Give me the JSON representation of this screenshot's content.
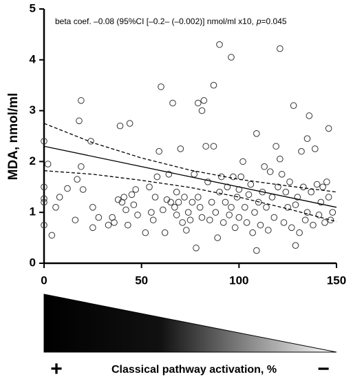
{
  "chart_data": {
    "type": "scatter",
    "annotation": {
      "text": "beta coef. –0.08 (95%CI [–0.2– (–0.002)] nmol/ml x10,",
      "p_label": "p",
      "p_value": "=0.045"
    },
    "y_label": "MDA, nmol/ml",
    "x_label": "Classical pathway activation, %",
    "left_marker": "+",
    "right_marker": "−",
    "xlim": [
      0,
      150
    ],
    "xticks": [
      0,
      50,
      100,
      150
    ],
    "ylim": [
      0,
      5
    ],
    "yticks": [
      0,
      1,
      2,
      3,
      4,
      5
    ],
    "marker_color": "#333333",
    "x": [
      0,
      0,
      0,
      0,
      0,
      2,
      4,
      6,
      8,
      12,
      16,
      17,
      18,
      19,
      19,
      20,
      24,
      25,
      25,
      28,
      33,
      35,
      36,
      38,
      39,
      40,
      41,
      42,
      43,
      44,
      45,
      46,
      47,
      48,
      52,
      54,
      55,
      56,
      57,
      58,
      59,
      60,
      61,
      62,
      63,
      64,
      65,
      66,
      67,
      68,
      68,
      69,
      70,
      71,
      72,
      73,
      74,
      75,
      76,
      77,
      78,
      79,
      79,
      80,
      81,
      81,
      82,
      83,
      84,
      85,
      86,
      87,
      87,
      88,
      89,
      90,
      90,
      91,
      92,
      93,
      94,
      95,
      96,
      96,
      97,
      98,
      99,
      100,
      100,
      101,
      102,
      103,
      104,
      105,
      106,
      107,
      108,
      109,
      109,
      110,
      111,
      112,
      113,
      114,
      115,
      116,
      117,
      118,
      119,
      120,
      121,
      121,
      122,
      123,
      124,
      125,
      126,
      127,
      128,
      129,
      129,
      130,
      131,
      132,
      133,
      134,
      135,
      135,
      136,
      137,
      138,
      139,
      140,
      141,
      142,
      143,
      144,
      145,
      146,
      146,
      147,
      148
    ],
    "values": [
      2.4,
      1.5,
      1.27,
      1.2,
      0.75,
      1.95,
      0.55,
      1.1,
      1.3,
      1.47,
      0.85,
      1.65,
      2.8,
      3.2,
      1.9,
      1.45,
      2.4,
      1.1,
      0.7,
      0.9,
      0.75,
      0.9,
      0.8,
      1.25,
      2.7,
      1.2,
      1.3,
      1.05,
      0.75,
      2.75,
      1.35,
      1.15,
      1.45,
      0.95,
      0.6,
      1.5,
      1.0,
      0.85,
      1.3,
      1.7,
      2.2,
      3.47,
      1.05,
      0.6,
      1.25,
      1.75,
      1.2,
      3.15,
      1.1,
      1.4,
      0.95,
      1.2,
      2.25,
      0.8,
      1.3,
      0.65,
      1.0,
      0.85,
      1.2,
      1.75,
      0.3,
      3.15,
      1.3,
      1.1,
      3.0,
      0.9,
      3.2,
      2.3,
      1.6,
      0.85,
      1.2,
      3.5,
      2.3,
      1.0,
      0.5,
      4.3,
      1.4,
      1.7,
      0.8,
      1.2,
      1.5,
      0.95,
      4.05,
      1.1,
      1.7,
      0.7,
      1.3,
      1.45,
      0.9,
      1.7,
      2.0,
      1.1,
      0.8,
      1.35,
      1.55,
      0.6,
      1.0,
      2.55,
      0.25,
      1.2,
      0.75,
      1.4,
      1.9,
      1.1,
      0.65,
      1.8,
      1.3,
      0.9,
      2.3,
      1.5,
      4.22,
      2.05,
      1.75,
      0.8,
      1.4,
      1.1,
      1.6,
      0.7,
      3.1,
      0.35,
      1.15,
      1.3,
      0.6,
      2.2,
      1.5,
      0.85,
      2.45,
      1.0,
      2.9,
      1.4,
      0.75,
      2.25,
      1.55,
      0.95,
      1.2,
      1.5,
      0.8,
      1.6,
      2.65,
      1.3,
      0.85,
      1.0
    ],
    "fit": {
      "x": [
        0,
        150
      ],
      "y": [
        2.3,
        1.1
      ]
    },
    "ci_upper": {
      "x": [
        0,
        25,
        50,
        75,
        100,
        125,
        150
      ],
      "y": [
        2.75,
        2.37,
        2.07,
        1.83,
        1.65,
        1.52,
        1.4
      ]
    },
    "ci_lower": {
      "x": [
        0,
        25,
        50,
        75,
        100,
        125,
        150
      ],
      "y": [
        1.82,
        1.75,
        1.63,
        1.49,
        1.3,
        1.07,
        0.82
      ]
    }
  }
}
